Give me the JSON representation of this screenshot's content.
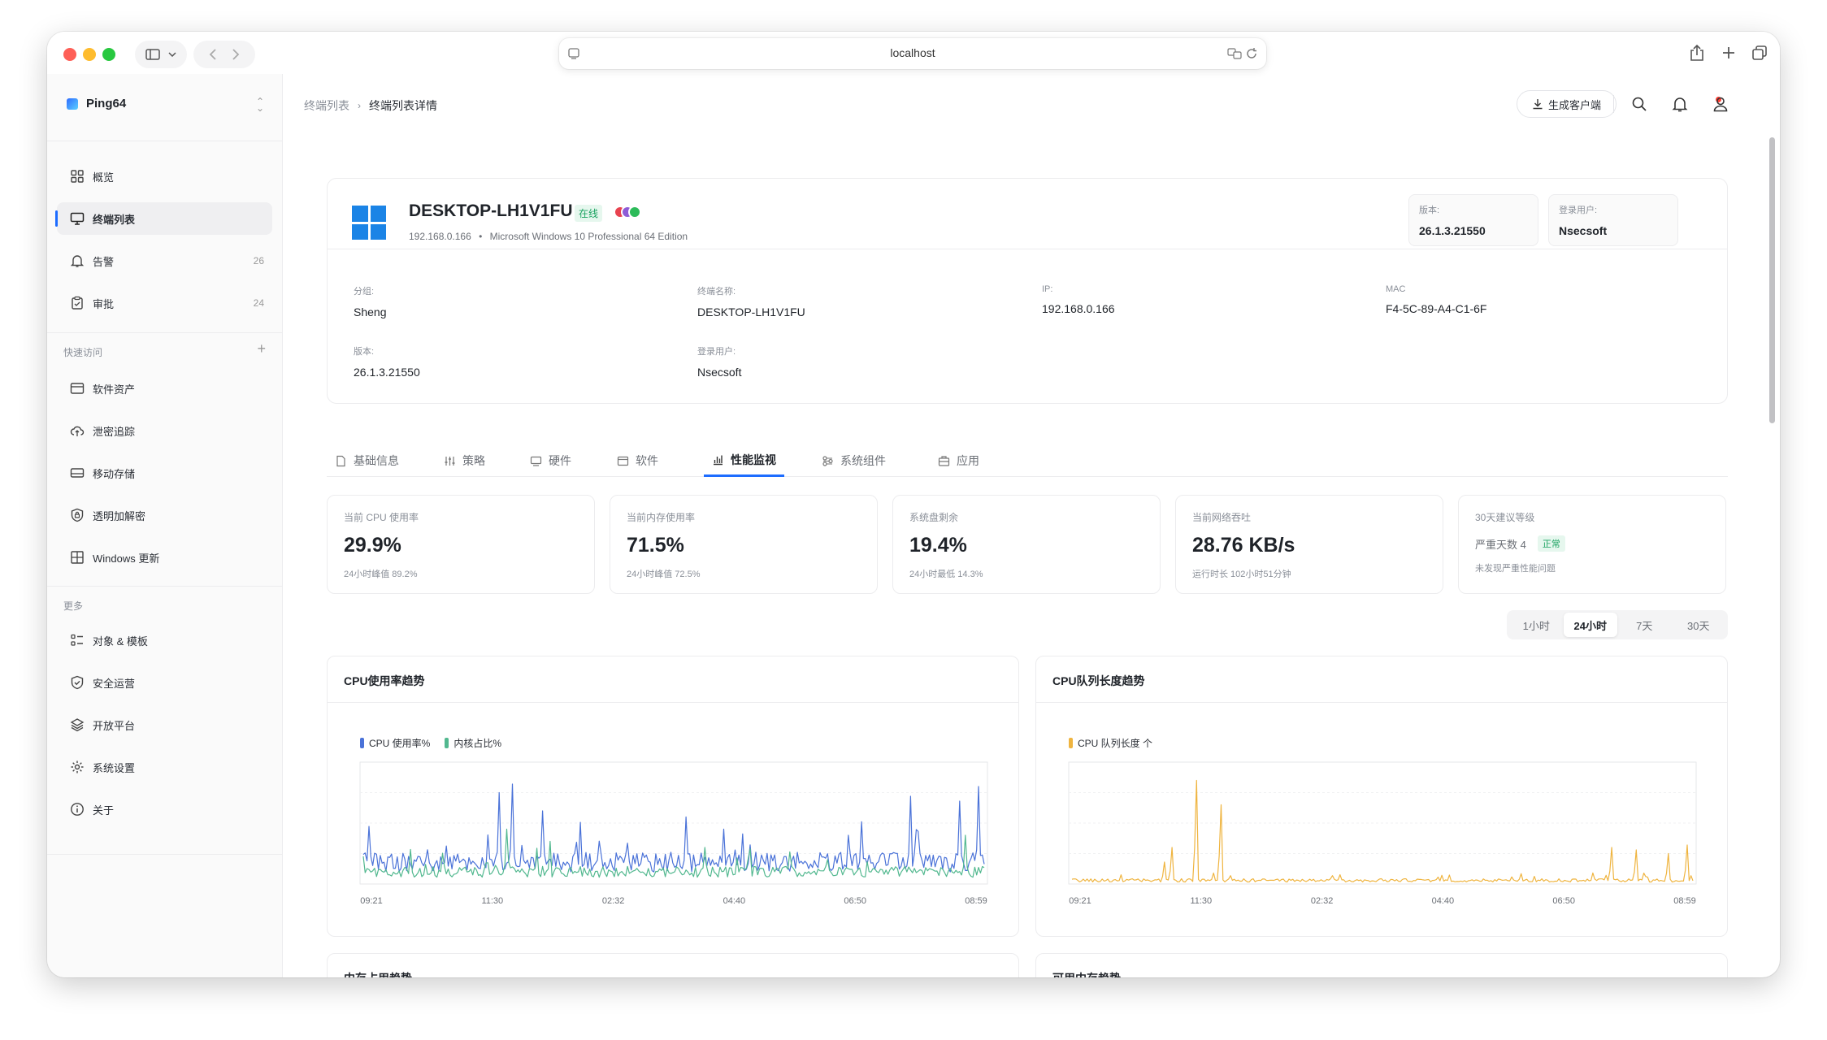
{
  "browser": {
    "url": "localhost"
  },
  "sidebar": {
    "brand": "Ping64",
    "items": [
      {
        "label": "概览",
        "icon": "grid-icon"
      },
      {
        "label": "终端列表",
        "icon": "monitor-icon",
        "active": true
      },
      {
        "label": "告警",
        "icon": "bell-icon",
        "count": "26"
      },
      {
        "label": "审批",
        "icon": "clipboard-icon",
        "count": "24"
      }
    ],
    "quick_label": "快速访问",
    "quick_items": [
      {
        "label": "软件资产",
        "icon": "card-icon"
      },
      {
        "label": "泄密追踪",
        "icon": "cloud-icon"
      },
      {
        "label": "移动存储",
        "icon": "drive-icon"
      },
      {
        "label": "透明加解密",
        "icon": "shield-lock-icon"
      },
      {
        "label": "Windows 更新",
        "icon": "windows-icon"
      }
    ],
    "more_label": "更多",
    "more_items": [
      {
        "label": "对象 & 模板",
        "icon": "list-icon"
      },
      {
        "label": "安全运营",
        "icon": "shield-check-icon"
      },
      {
        "label": "开放平台",
        "icon": "layers-icon"
      },
      {
        "label": "系统设置",
        "icon": "gear-icon"
      },
      {
        "label": "关于",
        "icon": "info-icon"
      }
    ]
  },
  "header": {
    "breadcrumb": [
      "终端列表",
      "终端列表详情"
    ],
    "generate_label": "生成客户端"
  },
  "device": {
    "name": "DESKTOP-LH1V1FU",
    "status": "在线",
    "ip": "192.168.0.166",
    "os": "Microsoft Windows 10 Professional 64 Edition",
    "version_label": "版本:",
    "version": "26.1.3.21550",
    "user_label": "登录用户:",
    "user": "Nsecsoft",
    "fields": [
      {
        "label": "分组:",
        "value": "Sheng"
      },
      {
        "label": "终端名称:",
        "value": "DESKTOP-LH1V1FU"
      },
      {
        "label": "IP:",
        "value": "192.168.0.166"
      },
      {
        "label": "MAC",
        "value": "F4-5C-89-A4-C1-6F"
      },
      {
        "label": "版本:",
        "value": "26.1.3.21550"
      },
      {
        "label": "登录用户:",
        "value": "Nsecsoft"
      }
    ],
    "dot_colors": [
      "#e8424f",
      "#8e5bd6",
      "#2dbb5a"
    ]
  },
  "tabs": [
    {
      "label": "基础信息",
      "icon": "file-icon"
    },
    {
      "label": "策略",
      "icon": "sliders-icon"
    },
    {
      "label": "硬件",
      "icon": "hardware-icon"
    },
    {
      "label": "软件",
      "icon": "window-icon"
    },
    {
      "label": "性能监视",
      "icon": "bar-chart-icon",
      "active": true
    },
    {
      "label": "系统组件",
      "icon": "components-icon"
    },
    {
      "label": "应用",
      "icon": "app-icon"
    }
  ],
  "stats": [
    {
      "label": "当前 CPU 使用率",
      "value": "29.9%",
      "sub": "24小时峰值 89.2%"
    },
    {
      "label": "当前内存使用率",
      "value": "71.5%",
      "sub": "24小时峰值 72.5%"
    },
    {
      "label": "系统盘剩余",
      "value": "19.4%",
      "sub": "24小时最低 14.3%"
    },
    {
      "label": "当前网络吞吐",
      "value": "28.76 KB/s",
      "sub": "运行时长 102小时51分钟"
    },
    {
      "label": "30天建议等级",
      "value": "严重天数 4",
      "badge": "正常",
      "sub": "未发现严重性能问题"
    }
  ],
  "time_ranges": [
    "1小时",
    "24小时",
    "7天",
    "30天"
  ],
  "time_range_active": 1,
  "colors": {
    "accent": "#1d6cff",
    "cpu": "#4a72d8",
    "kernel": "#52b88f",
    "queue": "#efb43f"
  },
  "chart_data": [
    {
      "type": "line",
      "title": "CPU使用率趋势",
      "x_ticks": [
        "09:21",
        "11:30",
        "02:32",
        "04:40",
        "06:50",
        "08:59"
      ],
      "ylim": [
        0,
        100
      ],
      "series": [
        {
          "name": "CPU 使用率%",
          "color": "#4a72d8",
          "base": 18,
          "spikes": [
            [
              0.22,
              75
            ],
            [
              0.24,
              82
            ],
            [
              0.29,
              60
            ],
            [
              0.52,
              55
            ],
            [
              0.58,
              45
            ],
            [
              0.78,
              40
            ],
            [
              0.88,
              72
            ],
            [
              0.96,
              68
            ],
            [
              0.99,
              80
            ]
          ]
        },
        {
          "name": "内核占比%",
          "color": "#52b88f",
          "base": 10,
          "spikes": [
            [
              0.23,
              45
            ],
            [
              0.3,
              35
            ],
            [
              0.55,
              30
            ],
            [
              0.97,
              40
            ]
          ]
        }
      ]
    },
    {
      "type": "line",
      "title": "CPU队列长度趋势",
      "x_ticks": [
        "09:21",
        "11:30",
        "02:32",
        "04:40",
        "06:50",
        "08:59"
      ],
      "ylim": [
        0,
        10
      ],
      "series": [
        {
          "name": "CPU 队列长度 个",
          "color": "#efb43f",
          "base": 0.3,
          "spikes": [
            [
              0.16,
              3.0
            ],
            [
              0.2,
              8.5
            ],
            [
              0.24,
              6.5
            ],
            [
              0.15,
              1.8
            ],
            [
              0.87,
              3.0
            ],
            [
              0.91,
              2.8
            ],
            [
              0.96,
              2.5
            ],
            [
              0.99,
              3.2
            ]
          ]
        }
      ]
    }
  ],
  "next_charts": [
    "内存占用趋势",
    "可用内存趋势"
  ]
}
